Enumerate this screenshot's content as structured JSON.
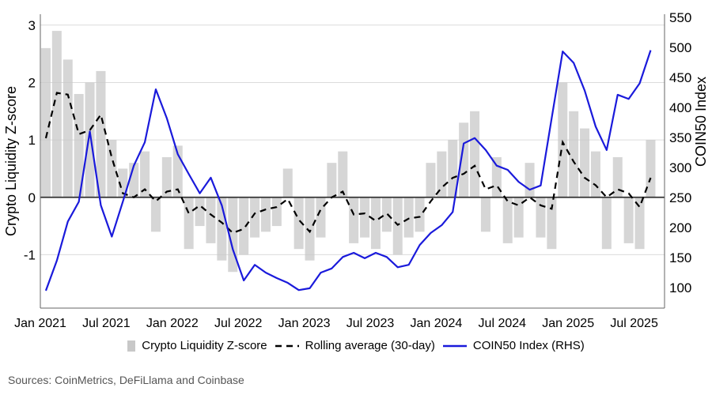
{
  "chart_data": {
    "type": "bar+line",
    "x": [
      "2021-01",
      "2021-02",
      "2021-03",
      "2021-04",
      "2021-05",
      "2021-06",
      "2021-07",
      "2021-08",
      "2021-09",
      "2021-10",
      "2021-11",
      "2021-12",
      "2022-01",
      "2022-02",
      "2022-03",
      "2022-04",
      "2022-05",
      "2022-06",
      "2022-07",
      "2022-08",
      "2022-09",
      "2022-10",
      "2022-11",
      "2022-12",
      "2023-01",
      "2023-02",
      "2023-03",
      "2023-04",
      "2023-05",
      "2023-06",
      "2023-07",
      "2023-08",
      "2023-09",
      "2023-10",
      "2023-11",
      "2023-12",
      "2024-01",
      "2024-02",
      "2024-03",
      "2024-04",
      "2024-05",
      "2024-06",
      "2024-07",
      "2024-08",
      "2024-09",
      "2024-10",
      "2024-11",
      "2024-12",
      "2025-01",
      "2025-02",
      "2025-03",
      "2025-04",
      "2025-05",
      "2025-06",
      "2025-07",
      "2025-08"
    ],
    "series": [
      {
        "name": "Crypto Liquidity Z-score",
        "type": "bar",
        "axis": "left",
        "color": "#c8c8c8",
        "values": [
          2.6,
          2.9,
          2.4,
          1.8,
          2.0,
          2.2,
          1.0,
          0.5,
          0.6,
          0.8,
          -0.6,
          0.7,
          0.9,
          -0.9,
          -0.5,
          -0.8,
          -1.1,
          -1.3,
          -1.0,
          -0.7,
          -0.6,
          -0.5,
          0.5,
          -0.9,
          -1.1,
          -0.7,
          0.6,
          0.8,
          -0.8,
          -0.7,
          -0.9,
          -0.6,
          -1.0,
          -0.7,
          -0.6,
          0.6,
          0.8,
          1.0,
          1.3,
          1.5,
          -0.6,
          0.7,
          -0.8,
          -0.7,
          0.6,
          -0.7,
          -0.9,
          2.0,
          1.5,
          1.2,
          0.8,
          -0.9,
          0.7,
          -0.8,
          -0.9,
          1.0
        ]
      },
      {
        "name": "Rolling average (30-day)",
        "type": "line",
        "axis": "left",
        "color": "#000000",
        "dash": true,
        "values": [
          1.03,
          1.82,
          1.79,
          1.1,
          1.17,
          1.44,
          0.69,
          0.07,
          0.0,
          0.14,
          -0.07,
          0.1,
          0.14,
          -0.28,
          -0.14,
          -0.3,
          -0.44,
          -0.62,
          -0.55,
          -0.28,
          -0.21,
          -0.17,
          -0.03,
          -0.39,
          -0.6,
          -0.21,
          0.0,
          0.1,
          -0.3,
          -0.28,
          -0.41,
          -0.28,
          -0.48,
          -0.37,
          -0.34,
          -0.07,
          0.17,
          0.34,
          0.41,
          0.55,
          0.14,
          0.21,
          -0.07,
          -0.14,
          0.0,
          -0.14,
          -0.2,
          0.96,
          0.62,
          0.34,
          0.21,
          0.0,
          0.14,
          0.07,
          -0.17,
          0.34
        ]
      },
      {
        "name": "COIN50 Index (RHS)",
        "type": "line",
        "axis": "right",
        "color": "#1a1adb",
        "values": [
          95,
          145,
          210,
          243,
          360,
          237,
          185,
          243,
          303,
          342,
          430,
          382,
          322,
          289,
          257,
          283,
          237,
          164,
          112,
          138,
          125,
          116,
          108,
          96,
          99,
          125,
          132,
          151,
          158,
          149,
          158,
          151,
          134,
          138,
          171,
          191,
          204,
          226,
          340,
          349,
          329,
          303,
          296,
          276,
          263,
          270,
          382,
          493,
          474,
          428,
          368,
          329,
          421,
          414,
          440,
          495
        ]
      }
    ],
    "ylabel": "Crypto Liquidity Z-score",
    "y2label": "COIN50 Index",
    "ylim": [
      -1.93,
      3.19
    ],
    "y2lim": [
      66,
      555
    ],
    "yticks": [
      "3",
      "2",
      "1",
      "0",
      "-1"
    ],
    "y2ticks": [
      "550",
      "500",
      "450",
      "400",
      "350",
      "300",
      "250",
      "200",
      "150",
      "100"
    ],
    "xticks": [
      "Jan 2021",
      "Jul 2021",
      "Jan 2022",
      "Jul 2022",
      "Jan 2023",
      "Jul 2023",
      "Jan 2024",
      "Jul 2024",
      "Jan 2025",
      "Jul 2025"
    ],
    "grid": true,
    "legend_position": "bottom"
  },
  "legend": {
    "zscore": "Crypto Liquidity Z-score",
    "rolling": "Rolling average (30-day)",
    "coin50": "COIN50 Index (RHS)"
  },
  "sources": "Sources: CoinMetrics, DeFiLlama and Coinbase"
}
